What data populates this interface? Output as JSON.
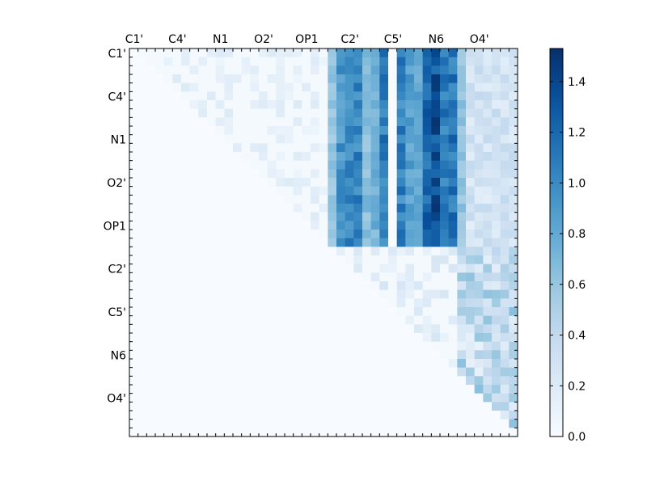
{
  "chart_data": {
    "type": "heatmap",
    "title": "",
    "xlabel": "",
    "ylabel": "",
    "grid": false,
    "colormap": "Blues",
    "n_rows": 45,
    "n_cols": 45,
    "x_tick_labels": [
      "C1'",
      "C4'",
      "N1",
      "O2'",
      "OP1",
      "C2'",
      "C5'",
      "N6",
      "O4'"
    ],
    "y_tick_labels": [
      "C1'",
      "C4'",
      "N1",
      "O2'",
      "OP1",
      "C2'",
      "C5'",
      "N6",
      "O4'"
    ],
    "x_tick_label_position": "top",
    "colorbar": {
      "range": [
        0.0,
        1.53
      ],
      "ticks": [
        0.0,
        0.2,
        0.4,
        0.6,
        0.8,
        1.0,
        1.2,
        1.4
      ],
      "tick_labels": [
        "0.0",
        "0.2",
        "0.4",
        "0.6",
        "0.8",
        "1.0",
        "1.2",
        "1.4"
      ],
      "placement": "right"
    },
    "pattern": "upper-triangular matrix; strongest values (about 0.8–1.5) in rows C1'–OP1, columns C2'–N6; moderate values (about 0.1–0.7) in columns O4' region; lower triangle near 0"
  },
  "colors": {
    "low": "#f7fbff",
    "high": "#08306b"
  }
}
